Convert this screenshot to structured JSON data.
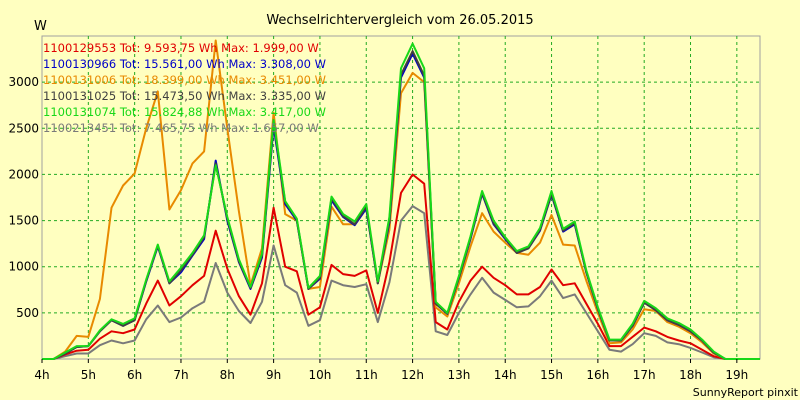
{
  "chart_data": {
    "type": "line",
    "title": "Wechselrichtervergleich vom 26.05.2015",
    "ylabel": "W",
    "footer": "SunnyReport pinxit",
    "ylim": [
      0,
      3500
    ],
    "xlim": [
      4,
      19.5
    ],
    "yticks": [
      500,
      1000,
      1500,
      2000,
      2500,
      3000
    ],
    "xticks": [
      4,
      5,
      6,
      7,
      8,
      9,
      10,
      11,
      12,
      13,
      14,
      15,
      16,
      17,
      18,
      19
    ],
    "xtick_labels": [
      "4h",
      "5h",
      "6h",
      "7h",
      "8h",
      "9h",
      "10h",
      "11h",
      "12h",
      "13h",
      "14h",
      "15h",
      "16h",
      "17h",
      "18h",
      "19h"
    ],
    "legend": [
      {
        "text": "1100129553 Tot: 9.593,75 Wh Max: 1.999,00 W",
        "color": "#e00000"
      },
      {
        "text": "1100130966 Tot: 15.561,00 Wh Max: 3.308,00 W",
        "color": "#0000c8"
      },
      {
        "text": "1100131006 Tot: 18.399,00 Wh Max: 3.451,00 W",
        "color": "#e88a00"
      },
      {
        "text": "1100131025 Tot: 15.473,50 Wh Max: 3.335,00 W",
        "color": "#404040"
      },
      {
        "text": "1100131074 Tot: 15.824,88 Wh Max: 3.417,00 W",
        "color": "#18d818"
      },
      {
        "text": "1100213451 Tot: 7.465,75 Wh Max: 1.657,00 W",
        "color": "#7a7a7a"
      }
    ],
    "x": [
      4.0,
      4.25,
      4.5,
      4.75,
      5.0,
      5.25,
      5.5,
      5.75,
      6.0,
      6.25,
      6.5,
      6.75,
      7.0,
      7.25,
      7.5,
      7.75,
      8.0,
      8.25,
      8.5,
      8.75,
      9.0,
      9.25,
      9.5,
      9.75,
      10.0,
      10.25,
      10.5,
      10.75,
      11.0,
      11.25,
      11.5,
      11.75,
      12.0,
      12.25,
      12.5,
      12.75,
      13.0,
      13.25,
      13.5,
      13.75,
      14.0,
      14.25,
      14.5,
      14.75,
      15.0,
      15.25,
      15.5,
      15.75,
      16.0,
      16.25,
      16.5,
      16.75,
      17.0,
      17.25,
      17.5,
      17.75,
      18.0,
      18.25,
      18.5,
      18.75,
      19.0,
      19.25,
      19.5
    ],
    "series": [
      {
        "name": "1100213451",
        "color": "#7a7a7a",
        "values": [
          0,
          0,
          30,
          60,
          60,
          150,
          200,
          170,
          200,
          430,
          580,
          400,
          450,
          550,
          620,
          1040,
          720,
          520,
          390,
          620,
          1230,
          800,
          720,
          360,
          420,
          850,
          800,
          780,
          810,
          400,
          830,
          1500,
          1657,
          1580,
          300,
          260,
          500,
          700,
          880,
          720,
          640,
          560,
          570,
          680,
          850,
          660,
          700,
          500,
          300,
          100,
          80,
          160,
          280,
          250,
          180,
          160,
          120,
          70,
          20,
          0,
          0,
          0,
          0
        ]
      },
      {
        "name": "1100129553",
        "color": "#e00000",
        "values": [
          0,
          0,
          50,
          90,
          100,
          220,
          300,
          280,
          320,
          600,
          850,
          580,
          680,
          800,
          900,
          1390,
          980,
          680,
          480,
          820,
          1640,
          1000,
          950,
          480,
          560,
          1020,
          920,
          900,
          960,
          500,
          1050,
          1800,
          1999,
          1900,
          400,
          320,
          620,
          850,
          1000,
          880,
          800,
          700,
          700,
          780,
          970,
          800,
          820,
          600,
          380,
          140,
          140,
          240,
          340,
          300,
          240,
          200,
          170,
          100,
          30,
          0,
          0,
          0,
          0
        ]
      },
      {
        "name": "1100131006",
        "color": "#e88a00",
        "values": [
          0,
          0,
          80,
          250,
          240,
          650,
          1640,
          1880,
          2010,
          2500,
          2900,
          1620,
          1830,
          2120,
          2250,
          3451,
          2500,
          1600,
          800,
          1200,
          2670,
          1570,
          1500,
          760,
          780,
          1650,
          1460,
          1460,
          1640,
          820,
          1400,
          2880,
          3100,
          3000,
          560,
          460,
          820,
          1220,
          1580,
          1380,
          1260,
          1150,
          1130,
          1260,
          1560,
          1240,
          1230,
          850,
          500,
          170,
          180,
          320,
          540,
          520,
          400,
          350,
          280,
          180,
          60,
          0,
          0,
          0,
          0
        ]
      },
      {
        "name": "1100130966",
        "color": "#0000c8",
        "values": [
          0,
          0,
          60,
          130,
          140,
          300,
          420,
          360,
          420,
          840,
          1220,
          820,
          940,
          1120,
          1300,
          2150,
          1500,
          1050,
          760,
          1100,
          2520,
          1680,
          1500,
          760,
          870,
          1720,
          1540,
          1450,
          1630,
          820,
          1480,
          3050,
          3308,
          3050,
          600,
          490,
          880,
          1300,
          1790,
          1460,
          1300,
          1150,
          1200,
          1390,
          1780,
          1380,
          1460,
          940,
          540,
          200,
          200,
          360,
          610,
          530,
          420,
          370,
          300,
          200,
          70,
          0,
          0,
          0,
          0
        ]
      },
      {
        "name": "1100131025",
        "color": "#404040",
        "values": [
          0,
          0,
          60,
          130,
          140,
          300,
          420,
          360,
          420,
          850,
          1230,
          820,
          960,
          1130,
          1320,
          2120,
          1520,
          1060,
          770,
          1120,
          2560,
          1700,
          1510,
          760,
          880,
          1740,
          1550,
          1460,
          1650,
          820,
          1500,
          3080,
          3335,
          3070,
          600,
          490,
          880,
          1310,
          1800,
          1470,
          1310,
          1150,
          1200,
          1400,
          1790,
          1390,
          1470,
          940,
          540,
          200,
          200,
          360,
          610,
          530,
          420,
          370,
          300,
          200,
          70,
          0,
          0,
          0,
          0
        ]
      },
      {
        "name": "1100131074",
        "color": "#18d818",
        "values": [
          0,
          0,
          70,
          140,
          140,
          310,
          430,
          380,
          440,
          860,
          1240,
          840,
          990,
          1150,
          1340,
          2100,
          1540,
          1080,
          780,
          1140,
          2590,
          1710,
          1520,
          770,
          900,
          1760,
          1570,
          1490,
          1680,
          840,
          1540,
          3150,
          3417,
          3150,
          620,
          500,
          900,
          1330,
          1820,
          1500,
          1320,
          1170,
          1220,
          1420,
          1820,
          1410,
          1490,
          960,
          560,
          210,
          210,
          380,
          630,
          550,
          440,
          390,
          320,
          210,
          80,
          0,
          0,
          0,
          0
        ]
      }
    ]
  }
}
